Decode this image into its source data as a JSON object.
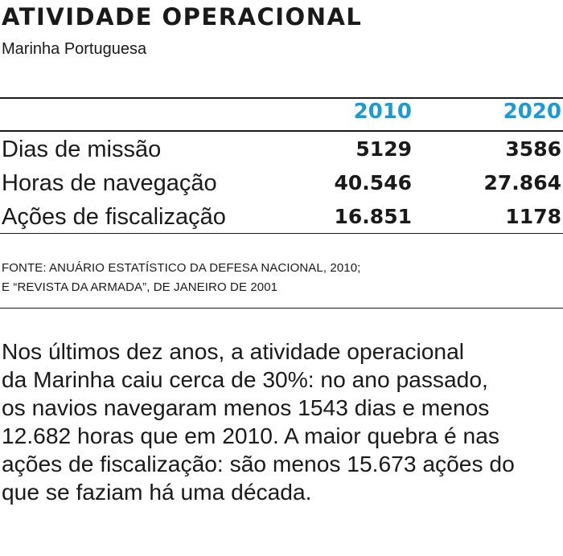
{
  "title": "ATIVIDADE OPERACIONAL",
  "subtitle": "Marinha Portuguesa",
  "colors": {
    "accent": "#1a9ad6",
    "text": "#1a1a1a"
  },
  "chart_data": {
    "type": "table",
    "title": "ATIVIDADE OPERACIONAL",
    "subtitle": "Marinha Portuguesa",
    "columns": [
      "2010",
      "2020"
    ],
    "rows": [
      {
        "label": "Dias de missão",
        "values": [
          "5129",
          "3586"
        ]
      },
      {
        "label": "Horas de navegação",
        "values": [
          "40.546",
          "27.864"
        ]
      },
      {
        "label": "Ações de fiscalização",
        "values": [
          "16.851",
          "1178"
        ]
      }
    ]
  },
  "source": {
    "line1": "FONTE: ANUÁRIO ESTATÍSTICO DA DEFESA NACIONAL, 2010;",
    "line2": "E “REVISTA DA ARMADA”, DE JANEIRO DE 2001"
  },
  "body": {
    "lines": [
      "Nos últimos dez anos, a atividade operacional",
      "da Marinha caiu cerca de 30%: no ano passado,",
      "os navios navegaram menos 1543 dias e menos",
      "12.682 horas que em 2010. A maior quebra é nas",
      "ações de fiscalização: são menos 15.673 ações do",
      "que se faziam há uma década."
    ]
  }
}
